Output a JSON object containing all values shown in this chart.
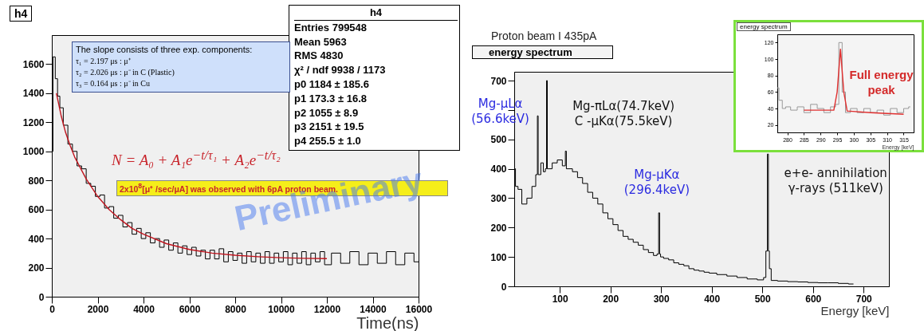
{
  "chart_data": [
    {
      "type": "step",
      "title": "h4",
      "xlabel": "Time(ns)",
      "xlim": [
        0,
        16000
      ],
      "ylim": [
        0,
        1800
      ],
      "xticks": [
        0,
        2000,
        4000,
        6000,
        8000,
        10000,
        12000,
        14000,
        16000
      ],
      "yticks": [
        0,
        200,
        400,
        600,
        800,
        1000,
        1200,
        1400,
        1600
      ],
      "annotations": [
        "h4",
        "Entries 799548",
        "Mean 5963",
        "RMS 4830",
        "χ² / ndf 9938 / 1173",
        "p0 1184 ± 185.6",
        "p1 173.3 ± 16.8",
        "p2 1055 ± 8.9",
        "p3 2151 ± 19.5",
        "p4 255.5 ± 1.0",
        "The slope consists of three exp. components:",
        "τ₁ = 2.197 μs : μ⁺",
        "τ₂ = 2.026 μs : μ⁻ in C (Plastic)",
        "τ₃ = 0.164 μs : μ⁻ in Cu",
        "N = A₀ + A₁e$^{−t/τ₁}$ + A₂e$^{−t/τ₂}$",
        "2x10$^{8}$[μ⁺ /sec/μA] was observed with 6pA proton beam.",
        "Preliminary"
      ],
      "series": [
        {
          "color": "#000000",
          "x": [
            0,
            100,
            200,
            300,
            400,
            600,
            800,
            1000,
            1200,
            1400,
            1600,
            1800,
            2000,
            2200,
            2400,
            2600,
            2800,
            3000,
            3200,
            3400,
            3600,
            3800,
            4000,
            4200,
            4400,
            4600,
            4800,
            5000,
            5200,
            5400,
            5600,
            5800,
            6000,
            6200,
            6400,
            6600,
            6800,
            7000,
            7200,
            7400,
            7600,
            7800,
            8000,
            8200,
            8400,
            8600,
            8800,
            9000,
            9200,
            9400,
            9600,
            9800,
            10000,
            10200,
            10400,
            10600,
            10800,
            11000,
            11200,
            11400,
            11600,
            11800,
            12000,
            12400,
            12800,
            13200,
            13600,
            14000,
            14400,
            14800,
            15200,
            15600,
            16000
          ],
          "values": [
            1000,
            1650,
            1500,
            1380,
            1300,
            1180,
            1050,
            1000,
            900,
            880,
            780,
            760,
            690,
            700,
            610,
            620,
            540,
            560,
            480,
            510,
            430,
            470,
            400,
            440,
            370,
            400,
            340,
            390,
            320,
            370,
            300,
            350,
            290,
            340,
            280,
            320,
            260,
            320,
            260,
            330,
            240,
            310,
            250,
            300,
            230,
            310,
            240,
            300,
            230,
            310,
            230,
            300,
            240,
            310,
            220,
            300,
            230,
            310,
            220,
            300,
            240,
            310,
            220,
            300,
            230,
            310,
            220,
            300,
            230,
            310,
            220,
            300,
            240
          ]
        },
        {
          "type": "line",
          "color": "#c0141e",
          "x": [
            200,
            400,
            600,
            800,
            1000,
            1500,
            2000,
            2500,
            3000,
            3500,
            4000,
            5000,
            6000,
            7000,
            8000,
            9000,
            10000,
            11000,
            12000
          ],
          "values": [
            1400,
            1250,
            1130,
            1040,
            960,
            810,
            690,
            600,
            530,
            470,
            430,
            365,
            325,
            300,
            285,
            275,
            268,
            264,
            262
          ]
        }
      ]
    },
    {
      "type": "step",
      "title": "energy spectrum",
      "subtitle": "Proton beam I  435pA",
      "xlabel": "Energy  [keV]",
      "xlim": [
        10,
        750
      ],
      "ylim": [
        0,
        730
      ],
      "xticks": [
        100,
        200,
        300,
        400,
        500,
        600,
        700
      ],
      "yticks": [
        0,
        100,
        200,
        300,
        400,
        500,
        {
          "value": 600,
          "label": null
        },
        700
      ],
      "annotations": [
        {
          "text": "Mg-μLα\n(56.6keV)",
          "x": 56.6,
          "y": 580
        },
        {
          "text": "Mg-πLα(74.7keV)\nC -μKα(75.5keV)",
          "x": 74.7,
          "y": 700
        },
        {
          "text": "Mg-μKα\n(296.4keV)",
          "x": 296.4,
          "y": 250
        },
        {
          "text": "e+e- annihilation\nγ-rays (511keV)",
          "x": 511,
          "y": 450
        }
      ],
      "series": [
        {
          "color": "#000000",
          "x": [
            10,
            15,
            20,
            30,
            40,
            50,
            55,
            56.6,
            58,
            60,
            65,
            70,
            73,
            74.7,
            76,
            80,
            90,
            100,
            110,
            112,
            114,
            120,
            130,
            140,
            150,
            160,
            170,
            180,
            190,
            200,
            210,
            220,
            230,
            240,
            250,
            260,
            270,
            280,
            290,
            294,
            296.4,
            298,
            300,
            310,
            320,
            330,
            340,
            350,
            360,
            370,
            380,
            390,
            400,
            420,
            440,
            460,
            480,
            500,
            505,
            509,
            511,
            513,
            515,
            520,
            540,
            560,
            580,
            600,
            620,
            640,
            660,
            680
          ],
          "values": [
            400,
            340,
            330,
            280,
            300,
            340,
            380,
            580,
            380,
            380,
            420,
            390,
            400,
            700,
            400,
            400,
            420,
            430,
            410,
            460,
            400,
            400,
            390,
            370,
            350,
            320,
            300,
            280,
            250,
            230,
            210,
            190,
            170,
            160,
            150,
            140,
            125,
            115,
            105,
            110,
            250,
            110,
            100,
            95,
            90,
            80,
            75,
            70,
            60,
            55,
            52,
            48,
            45,
            40,
            35,
            30,
            25,
            22,
            30,
            120,
            450,
            120,
            60,
            20,
            18,
            16,
            15,
            13,
            12,
            12,
            10,
            8
          ]
        }
      ]
    },
    {
      "type": "step",
      "title": "energy spectrum",
      "xlabel": "Energy [keV]",
      "xlim": [
        277,
        318
      ],
      "ylim": [
        11,
        130
      ],
      "xticks": [
        280,
        285,
        290,
        295,
        300,
        305,
        310,
        315
      ],
      "yticks": [
        20,
        40,
        60,
        80,
        100,
        120
      ],
      "annotations": [
        "Full energy peak"
      ],
      "series": [
        {
          "color": "#999999",
          "x": [
            277,
            278,
            279,
            280,
            282,
            284,
            286,
            288,
            290,
            292,
            294,
            295,
            296,
            297,
            298,
            300,
            302,
            304,
            306,
            308,
            310,
            312,
            314,
            316,
            317
          ],
          "values": [
            65,
            50,
            40,
            42,
            38,
            42,
            35,
            45,
            40,
            35,
            42,
            45,
            120,
            60,
            35,
            40,
            35,
            40,
            35,
            38,
            32,
            40,
            35,
            40,
            42
          ]
        },
        {
          "type": "line",
          "color": "#e03030",
          "x": [
            285,
            294,
            295,
            296,
            297,
            298,
            305,
            315
          ],
          "values": [
            38,
            38,
            60,
            112,
            60,
            37,
            35,
            33
          ]
        }
      ]
    }
  ]
}
